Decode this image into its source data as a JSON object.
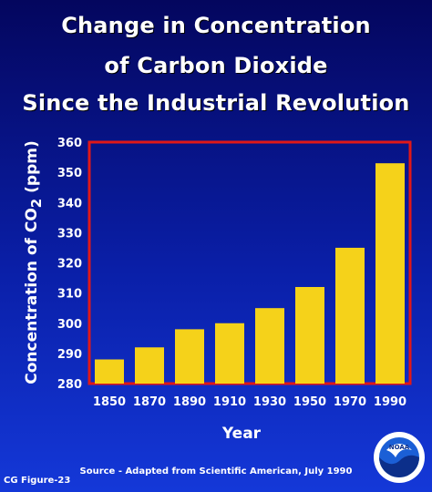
{
  "title_lines": [
    "Change in Concentration",
    "of Carbon Dioxide",
    "Since the Industrial Revolution"
  ],
  "source": "Source - Adapted from Scientific American, July 1990",
  "figure_id": "CG Figure-23",
  "logo": {
    "icon": "noaa-logo",
    "text": "NOAA"
  },
  "colors": {
    "bar": "#f5d21a",
    "frame": "#e01818",
    "text": "#ffffff"
  },
  "chart_data": {
    "type": "bar",
    "categories": [
      "1850",
      "1870",
      "1890",
      "1910",
      "1930",
      "1950",
      "1970",
      "1990"
    ],
    "values": [
      288,
      292,
      298,
      300,
      305,
      312,
      325,
      353
    ],
    "xlabel": "Year",
    "ylabel_main": "Concentration of CO",
    "ylabel_sub": "2",
    "ylabel_unit": " (ppm)",
    "ylim": [
      280,
      360
    ],
    "yticks": [
      280,
      290,
      300,
      310,
      320,
      330,
      340,
      350,
      360
    ],
    "grid": false
  }
}
